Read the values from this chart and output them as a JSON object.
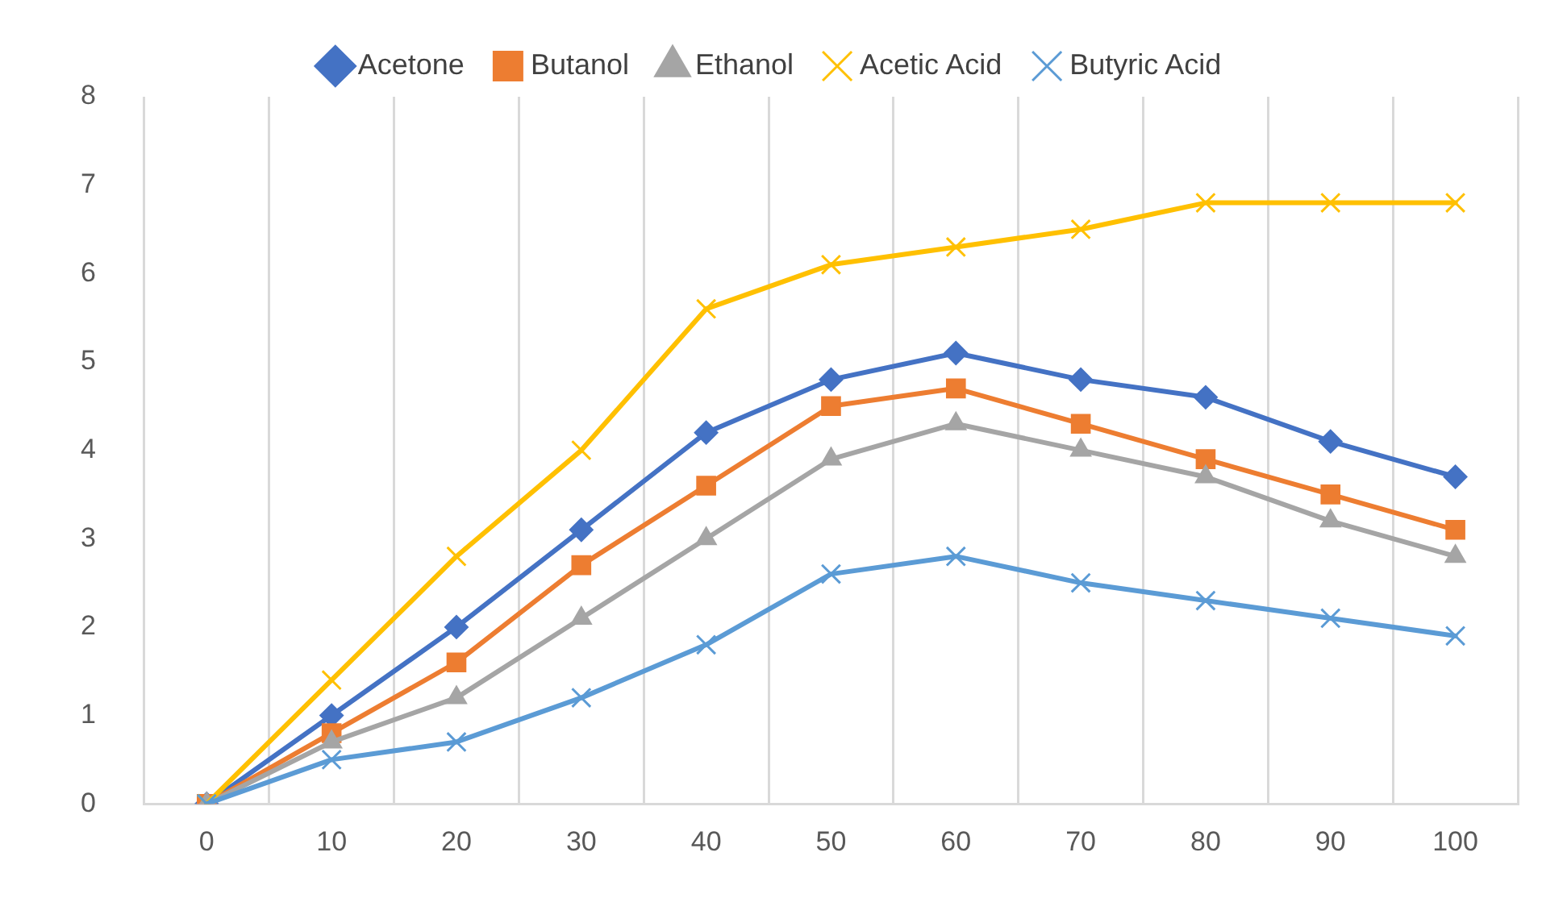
{
  "chart_data": {
    "type": "line",
    "categories": [
      "0",
      "10",
      "20",
      "30",
      "40",
      "50",
      "60",
      "70",
      "80",
      "90",
      "100"
    ],
    "series": [
      {
        "name": "Acetone",
        "color": "#4472c4",
        "marker": "diamond",
        "values": [
          0,
          1.0,
          2.0,
          3.1,
          4.2,
          4.8,
          5.1,
          4.8,
          4.6,
          4.1,
          3.7
        ]
      },
      {
        "name": "Butanol",
        "color": "#ed7d31",
        "marker": "square",
        "values": [
          0,
          0.8,
          1.6,
          2.7,
          3.6,
          4.5,
          4.7,
          4.3,
          3.9,
          3.5,
          3.1
        ]
      },
      {
        "name": "Ethanol",
        "color": "#a5a5a5",
        "marker": "triangle",
        "values": [
          0,
          0.7,
          1.2,
          2.1,
          3.0,
          3.9,
          4.3,
          4.0,
          3.7,
          3.2,
          2.8
        ]
      },
      {
        "name": "Acetic Acid",
        "color": "#ffc000",
        "marker": "cross",
        "values": [
          0,
          1.4,
          2.8,
          4.0,
          5.6,
          6.1,
          6.3,
          6.5,
          6.8,
          6.8,
          6.8
        ]
      },
      {
        "name": "Butyric Acid",
        "color": "#5b9bd5",
        "marker": "cross",
        "values": [
          0,
          0.5,
          0.7,
          1.2,
          1.8,
          2.6,
          2.8,
          2.5,
          2.3,
          2.1,
          1.9
        ]
      }
    ],
    "ylim": [
      0,
      8
    ],
    "yticks": [
      0,
      1,
      2,
      3,
      4,
      5,
      6,
      7,
      8
    ],
    "grid": "x",
    "legend": "top",
    "line_style": "solid"
  }
}
